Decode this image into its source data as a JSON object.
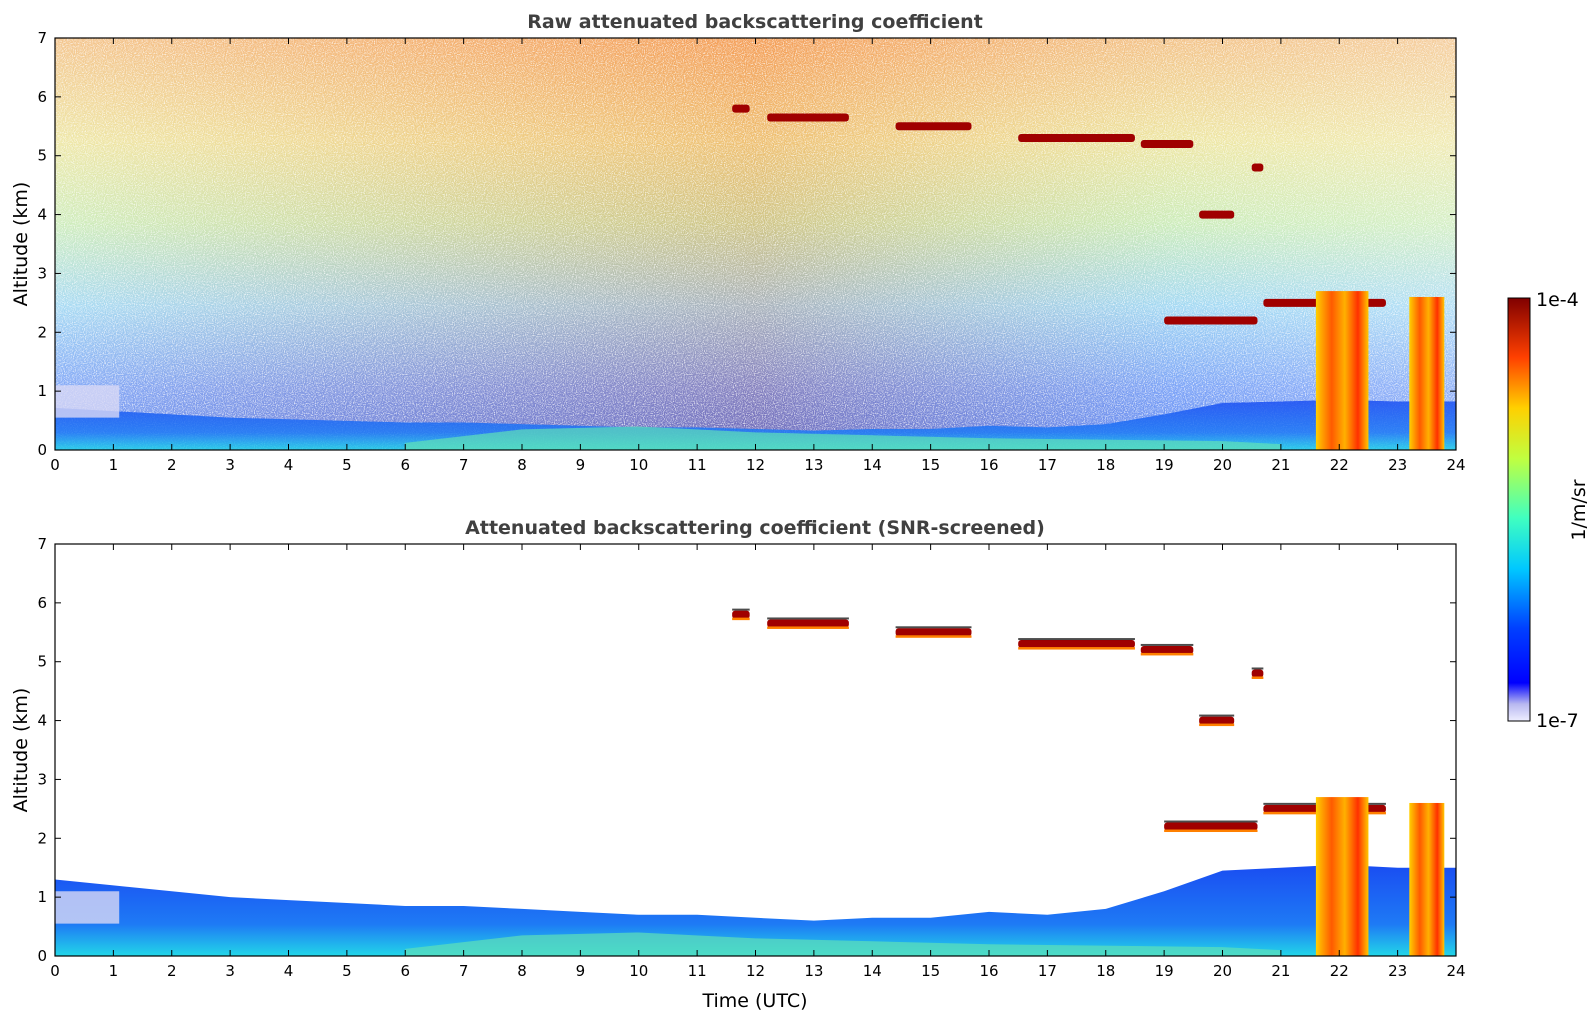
{
  "chart_data": [
    {
      "type": "heatmap",
      "title": "Raw attenuated backscattering coefficient",
      "xlabel": "",
      "ylabel": "Altitude (km)",
      "xlim": [
        0,
        24
      ],
      "ylim": [
        0,
        7
      ],
      "xticks": [
        "0",
        "1",
        "2",
        "3",
        "4",
        "5",
        "6",
        "7",
        "8",
        "9",
        "10",
        "11",
        "12",
        "13",
        "14",
        "15",
        "16",
        "17",
        "18",
        "19",
        "20",
        "21",
        "22",
        "23",
        "24"
      ],
      "yticks": [
        "0",
        "1",
        "2",
        "3",
        "4",
        "5",
        "6",
        "7"
      ],
      "screened": false,
      "features": [
        {
          "kind": "cloud",
          "x": [
            11.6,
            11.9
          ],
          "y": 5.8
        },
        {
          "kind": "cloud",
          "x": [
            12.2,
            13.6
          ],
          "y": 5.65
        },
        {
          "kind": "cloud",
          "x": [
            14.4,
            15.7
          ],
          "y": 5.5
        },
        {
          "kind": "cloud",
          "x": [
            16.5,
            18.5
          ],
          "y": 5.3
        },
        {
          "kind": "cloud",
          "x": [
            18.6,
            19.5
          ],
          "y": 5.2
        },
        {
          "kind": "cloud",
          "x": [
            19.6,
            20.2
          ],
          "y": 4.0
        },
        {
          "kind": "cloud",
          "x": [
            20.5,
            20.7
          ],
          "y": 4.8
        },
        {
          "kind": "cloud",
          "x": [
            20.7,
            22.8
          ],
          "y": 2.5
        },
        {
          "kind": "cloud",
          "x": [
            19.0,
            20.6
          ],
          "y": 2.2
        },
        {
          "kind": "rain",
          "x": [
            21.6,
            22.5
          ],
          "y": [
            0,
            2.7
          ]
        },
        {
          "kind": "rain",
          "x": [
            23.2,
            23.8
          ],
          "y": [
            0,
            2.6
          ]
        }
      ]
    },
    {
      "type": "heatmap",
      "title": "Attenuated backscattering coefficient (SNR-screened)",
      "xlabel": "Time (UTC)",
      "ylabel": "Altitude (km)",
      "xlim": [
        0,
        24
      ],
      "ylim": [
        0,
        7
      ],
      "xticks": [
        "0",
        "1",
        "2",
        "3",
        "4",
        "5",
        "6",
        "7",
        "8",
        "9",
        "10",
        "11",
        "12",
        "13",
        "14",
        "15",
        "16",
        "17",
        "18",
        "19",
        "20",
        "21",
        "22",
        "23",
        "24"
      ],
      "yticks": [
        "0",
        "1",
        "2",
        "3",
        "4",
        "5",
        "6",
        "7"
      ],
      "screened": true,
      "boundary_layer_top_km": [
        [
          0,
          1.3
        ],
        [
          1,
          1.2
        ],
        [
          2,
          1.1
        ],
        [
          3,
          1.0
        ],
        [
          4,
          0.95
        ],
        [
          5,
          0.9
        ],
        [
          6,
          0.85
        ],
        [
          7,
          0.85
        ],
        [
          8,
          0.8
        ],
        [
          9,
          0.75
        ],
        [
          10,
          0.7
        ],
        [
          11,
          0.7
        ],
        [
          12,
          0.65
        ],
        [
          13,
          0.6
        ],
        [
          14,
          0.65
        ],
        [
          15,
          0.65
        ],
        [
          16,
          0.75
        ],
        [
          17,
          0.7
        ],
        [
          18,
          0.8
        ],
        [
          19,
          1.1
        ],
        [
          20,
          1.45
        ],
        [
          21,
          1.5
        ],
        [
          22,
          1.55
        ],
        [
          23,
          1.5
        ],
        [
          24,
          1.5
        ]
      ]
    }
  ],
  "colorbar": {
    "min_label": "1e-7",
    "max_label": "1e-4",
    "unit_label": "1/m/sr",
    "colormap": "jet",
    "low_color": "#e6e6f5",
    "high_color": "#800000"
  }
}
